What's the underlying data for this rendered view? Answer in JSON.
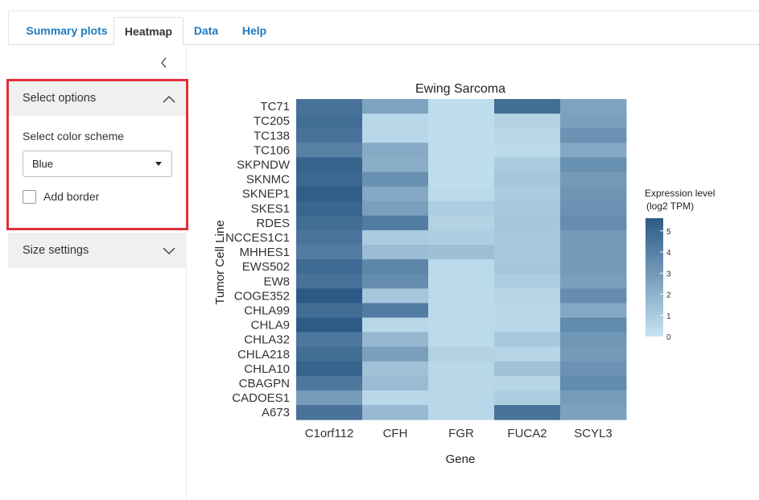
{
  "tabs": [
    "Summary plots",
    "Heatmap",
    "Data",
    "Help"
  ],
  "active_tab": "Heatmap",
  "sidebar": {
    "collapse_icon": "chevron-left-icon",
    "select_options": {
      "header": "Select options",
      "expanded": true,
      "color_scheme_label": "Select color scheme",
      "color_scheme_value": "Blue",
      "add_border_label": "Add border",
      "add_border_checked": false
    },
    "size_settings": {
      "header": "Size settings",
      "expanded": false
    }
  },
  "chart_data": {
    "type": "heatmap",
    "title": "Ewing Sarcoma",
    "xlabel": "Gene",
    "ylabel": "Tumor Cell Line",
    "x_categories": [
      "C1orf112",
      "CFH",
      "FGR",
      "FUCA2",
      "SCYL3"
    ],
    "y_categories": [
      "TC71",
      "TC205",
      "TC138",
      "TC106",
      "SKPNDW",
      "SKNMC",
      "SKNEP1",
      "SKES1",
      "RDES",
      "NCCES1C1",
      "MHHES1",
      "EWS502",
      "EW8",
      "COGE352",
      "CHLA99",
      "CHLA9",
      "CHLA32",
      "CHLA218",
      "CHLA10",
      "CBAGPN",
      "CADOES1",
      "A673"
    ],
    "values": [
      [
        4.6,
        2.6,
        0.3,
        4.8,
        2.6
      ],
      [
        4.8,
        0.5,
        0.3,
        0.7,
        2.8
      ],
      [
        4.6,
        0.5,
        0.3,
        0.5,
        3.3
      ],
      [
        4.0,
        2.3,
        0.3,
        0.4,
        2.4
      ],
      [
        5.2,
        2.2,
        0.3,
        1.0,
        3.4
      ],
      [
        5.0,
        3.4,
        0.3,
        1.2,
        3.0
      ],
      [
        5.4,
        2.4,
        0.4,
        1.0,
        3.2
      ],
      [
        5.1,
        2.8,
        0.9,
        1.1,
        3.3
      ],
      [
        4.8,
        4.2,
        0.7,
        1.2,
        3.5
      ],
      [
        4.5,
        1.0,
        0.9,
        1.1,
        3.0
      ],
      [
        4.2,
        1.6,
        1.5,
        1.1,
        3.0
      ],
      [
        4.9,
        3.8,
        0.4,
        1.2,
        3.0
      ],
      [
        4.6,
        3.5,
        0.4,
        0.9,
        2.8
      ],
      [
        5.6,
        1.2,
        0.4,
        0.6,
        3.5
      ],
      [
        4.8,
        4.2,
        0.4,
        0.5,
        2.4
      ],
      [
        5.5,
        0.5,
        0.4,
        0.5,
        3.6
      ],
      [
        4.4,
        1.8,
        0.4,
        1.1,
        3.1
      ],
      [
        4.8,
        2.8,
        0.7,
        0.6,
        3.0
      ],
      [
        5.2,
        1.4,
        0.5,
        1.4,
        3.3
      ],
      [
        4.4,
        1.6,
        0.5,
        0.6,
        3.6
      ],
      [
        2.9,
        0.5,
        0.5,
        0.9,
        2.9
      ],
      [
        4.6,
        1.7,
        0.5,
        4.6,
        2.7
      ]
    ],
    "legend": {
      "title_line1": "Expression level",
      "title_line2": "(log2 TPM)",
      "ticks": [
        0,
        1,
        2,
        3,
        4,
        5
      ],
      "min": 0,
      "max": 5.6,
      "placement": "right"
    },
    "colors": {
      "low": "#c6e4f3",
      "high": "#2c5985"
    }
  }
}
